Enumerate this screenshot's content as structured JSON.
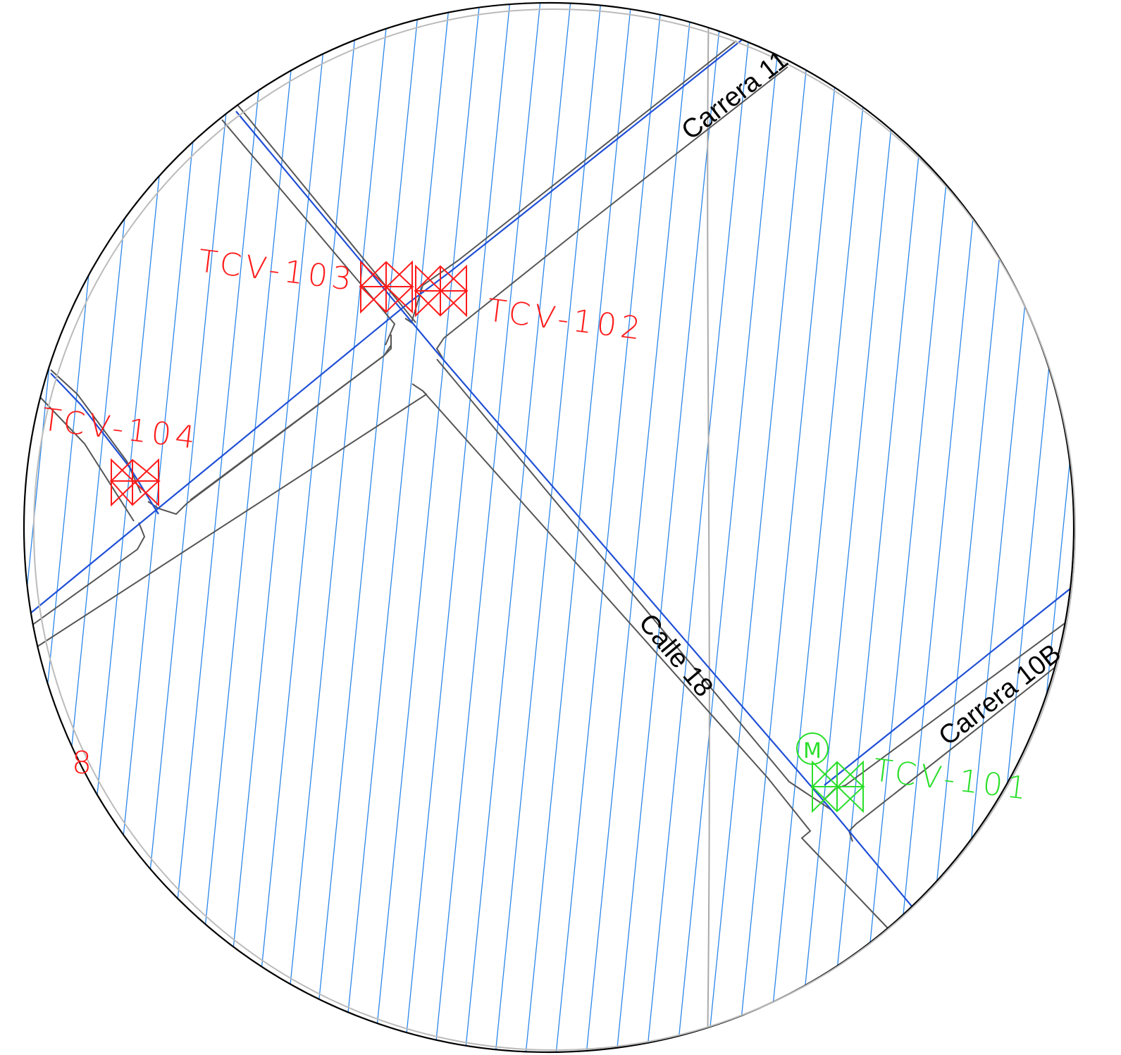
{
  "streets": {
    "carrera_11": "Carrera 11",
    "calle_18": "Calle 18",
    "carrera_10b": "Carrera 10B"
  },
  "valves": {
    "tcv_101": "TCV-101",
    "tcv_102": "TCV-102",
    "tcv_103": "TCV-103",
    "tcv_104": "TCV-104"
  },
  "fragments": {
    "partial_label": "8"
  },
  "legend_colors": {
    "hatch": "#2b86e8",
    "main_pipe": "#1f4fd6",
    "street_edge": "#555555",
    "valve_closed_red": "#ff1a1a",
    "valve_active_green": "#2adf2a"
  },
  "symbols": {
    "meter": "M"
  }
}
